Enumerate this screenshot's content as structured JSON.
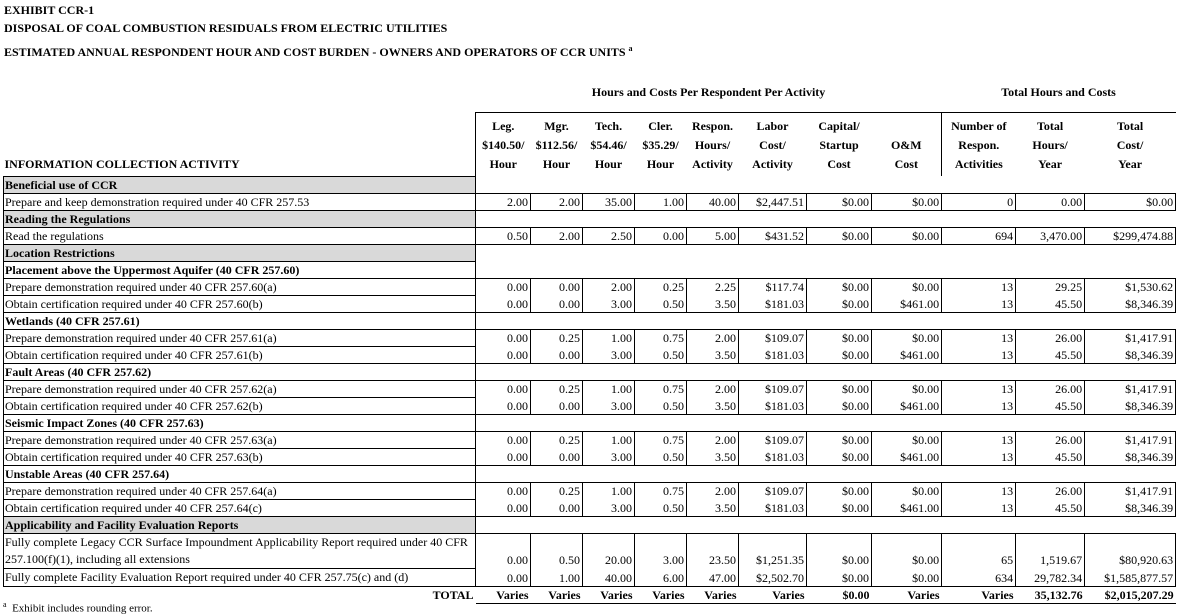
{
  "header": {
    "exhibit": "EXHIBIT CCR-1",
    "title": "DISPOSAL OF COAL COMBUSTION RESIDUALS FROM ELECTRIC UTILITIES",
    "subtitle": "ESTIMATED ANNUAL RESPONDENT HOUR AND COST BURDEN - OWNERS AND OPERATORS OF CCR UNITS",
    "subtitle_note": "a"
  },
  "table": {
    "groups": [
      "Hours and Costs Per Respondent Per Activity",
      "Total Hours and Costs"
    ],
    "activity_header": "INFORMATION COLLECTION ACTIVITY",
    "columns": [
      [
        "Leg.",
        "$140.50/",
        "Hour"
      ],
      [
        "Mgr.",
        "$112.56/",
        "Hour"
      ],
      [
        "Tech.",
        "$54.46/",
        "Hour"
      ],
      [
        "Cler.",
        "$35.29/",
        "Hour"
      ],
      [
        "Respon.",
        "Hours/",
        "Activity"
      ],
      [
        "Labor",
        "Cost/",
        "Activity"
      ],
      [
        "Capital/",
        "Startup",
        "Cost"
      ],
      [
        "O&M",
        "Cost"
      ],
      [
        "Number of",
        "Respon.",
        "Activities"
      ],
      [
        "Total",
        "Hours/",
        "Year"
      ],
      [
        "Total",
        "Cost/",
        "Year"
      ]
    ],
    "sections": [
      {
        "title": "Beneficial use of CCR",
        "rows": [
          {
            "label": "Prepare and keep demonstration required under 40 CFR 257.53",
            "values": [
              "2.00",
              "2.00",
              "35.00",
              "1.00",
              "40.00",
              "$2,447.51",
              "$0.00",
              "$0.00",
              "0",
              "0.00",
              "$0.00"
            ]
          }
        ]
      },
      {
        "title": "Reading the Regulations",
        "rows": [
          {
            "label": "Read the regulations",
            "values": [
              "0.50",
              "2.00",
              "2.50",
              "0.00",
              "5.00",
              "$431.52",
              "$0.00",
              "$0.00",
              "694",
              "3,470.00",
              "$299,474.88"
            ]
          }
        ]
      },
      {
        "title": "Location Restrictions",
        "rows": [
          {
            "title": "Placement above the Uppermost Aquifer (40 CFR 257.60)",
            "rows": [
              {
                "label": "Prepare demonstration required under 40 CFR 257.60(a)",
                "values": [
                  "0.00",
                  "0.00",
                  "2.00",
                  "0.25",
                  "2.25",
                  "$117.74",
                  "$0.00",
                  "$0.00",
                  "13",
                  "29.25",
                  "$1,530.62"
                ]
              },
              {
                "label": "Obtain certification required under 40 CFR 257.60(b)",
                "values": [
                  "0.00",
                  "0.00",
                  "3.00",
                  "0.50",
                  "3.50",
                  "$181.03",
                  "$0.00",
                  "$461.00",
                  "13",
                  "45.50",
                  "$8,346.39"
                ]
              }
            ]
          },
          {
            "title": "Wetlands (40 CFR 257.61)",
            "rows": [
              {
                "label": "Prepare demonstration required under 40 CFR 257.61(a)",
                "values": [
                  "0.00",
                  "0.25",
                  "1.00",
                  "0.75",
                  "2.00",
                  "$109.07",
                  "$0.00",
                  "$0.00",
                  "13",
                  "26.00",
                  "$1,417.91"
                ]
              },
              {
                "label": "Obtain certification required under 40 CFR 257.61(b)",
                "values": [
                  "0.00",
                  "0.00",
                  "3.00",
                  "0.50",
                  "3.50",
                  "$181.03",
                  "$0.00",
                  "$461.00",
                  "13",
                  "45.50",
                  "$8,346.39"
                ]
              }
            ]
          },
          {
            "title": "Fault Areas (40 CFR 257.62)",
            "rows": [
              {
                "label": "Prepare demonstration required under 40 CFR 257.62(a)",
                "values": [
                  "0.00",
                  "0.25",
                  "1.00",
                  "0.75",
                  "2.00",
                  "$109.07",
                  "$0.00",
                  "$0.00",
                  "13",
                  "26.00",
                  "$1,417.91"
                ]
              },
              {
                "label": "Obtain certification required under 40 CFR 257.62(b)",
                "values": [
                  "0.00",
                  "0.00",
                  "3.00",
                  "0.50",
                  "3.50",
                  "$181.03",
                  "$0.00",
                  "$461.00",
                  "13",
                  "45.50",
                  "$8,346.39"
                ]
              }
            ]
          },
          {
            "title": "Seismic Impact Zones (40 CFR 257.63)",
            "rows": [
              {
                "label": "Prepare demonstration required under 40 CFR 257.63(a)",
                "values": [
                  "0.00",
                  "0.25",
                  "1.00",
                  "0.75",
                  "2.00",
                  "$109.07",
                  "$0.00",
                  "$0.00",
                  "13",
                  "26.00",
                  "$1,417.91"
                ]
              },
              {
                "label": "Obtain certification required under 40 CFR 257.63(b)",
                "values": [
                  "0.00",
                  "0.00",
                  "3.00",
                  "0.50",
                  "3.50",
                  "$181.03",
                  "$0.00",
                  "$461.00",
                  "13",
                  "45.50",
                  "$8,346.39"
                ]
              }
            ]
          },
          {
            "title": "Unstable Areas (40 CFR 257.64)",
            "rows": [
              {
                "label": "Prepare demonstration required under 40 CFR 257.64(a)",
                "values": [
                  "0.00",
                  "0.25",
                  "1.00",
                  "0.75",
                  "2.00",
                  "$109.07",
                  "$0.00",
                  "$0.00",
                  "13",
                  "26.00",
                  "$1,417.91"
                ]
              },
              {
                "label": "Obtain certification required under 40 CFR 257.64(c)",
                "values": [
                  "0.00",
                  "0.00",
                  "3.00",
                  "0.50",
                  "3.50",
                  "$181.03",
                  "$0.00",
                  "$461.00",
                  "13",
                  "45.50",
                  "$8,346.39"
                ]
              }
            ]
          }
        ]
      },
      {
        "title": "Applicability and Facility Evaluation Reports",
        "rows": [
          {
            "label": "Fully complete Legacy CCR Surface Impoundment Applicability Report required under 40 CFR 257.100(f)(1), including all extensions",
            "values": [
              "0.00",
              "0.50",
              "20.00",
              "3.00",
              "23.50",
              "$1,251.35",
              "$0.00",
              "$0.00",
              "65",
              "1,519.67",
              "$80,920.63"
            ]
          },
          {
            "label": "Fully complete Facility Evaluation Report required under 40 CFR 257.75(c) and (d)",
            "values": [
              "0.00",
              "1.00",
              "40.00",
              "6.00",
              "47.00",
              "$2,502.70",
              "$0.00",
              "$0.00",
              "634",
              "29,782.34",
              "$1,585,877.57"
            ]
          }
        ]
      }
    ],
    "total": {
      "label": "TOTAL",
      "values": [
        "Varies",
        "Varies",
        "Varies",
        "Varies",
        "Varies",
        "Varies",
        "$0.00",
        "Varies",
        "Varies",
        "35,132.76",
        "$2,015,207.29"
      ]
    }
  },
  "footnote": {
    "mark": "a",
    "text": "Exhibit includes rounding error."
  }
}
